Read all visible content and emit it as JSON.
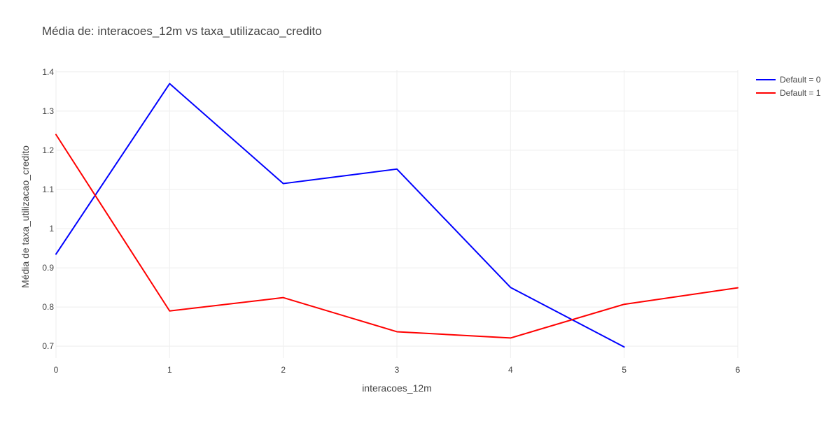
{
  "chart_data": {
    "type": "line",
    "title": "Média de: interacoes_12m vs taxa_utilizacao_credito",
    "xlabel": "interacoes_12m",
    "ylabel": "Média de taxa_utilizacao_credito",
    "xlim": [
      0,
      6
    ],
    "ylim": [
      0.67,
      1.405
    ],
    "x_ticks": [
      0,
      1,
      2,
      3,
      4,
      5,
      6
    ],
    "x_tick_labels": [
      "0",
      "1",
      "2",
      "3",
      "4",
      "5",
      "6"
    ],
    "y_ticks": [
      0.7,
      0.8,
      0.9,
      1.0,
      1.1,
      1.2,
      1.3,
      1.4
    ],
    "y_tick_labels": [
      "0.7",
      "0.8",
      "0.9",
      "1",
      "1.1",
      "1.2",
      "1.3",
      "1.4"
    ],
    "grid": true,
    "legend_position": "top-right",
    "series": [
      {
        "name": "Default = 0",
        "color": "#0000ff",
        "x": [
          0,
          1,
          2,
          3,
          4,
          5
        ],
        "values": [
          0.935,
          1.37,
          1.115,
          1.152,
          0.85,
          0.698
        ]
      },
      {
        "name": "Default = 1",
        "color": "#ff0000",
        "x": [
          0,
          1,
          2,
          3,
          4,
          5,
          6
        ],
        "values": [
          1.24,
          0.79,
          0.824,
          0.737,
          0.721,
          0.807,
          0.849
        ]
      }
    ]
  }
}
